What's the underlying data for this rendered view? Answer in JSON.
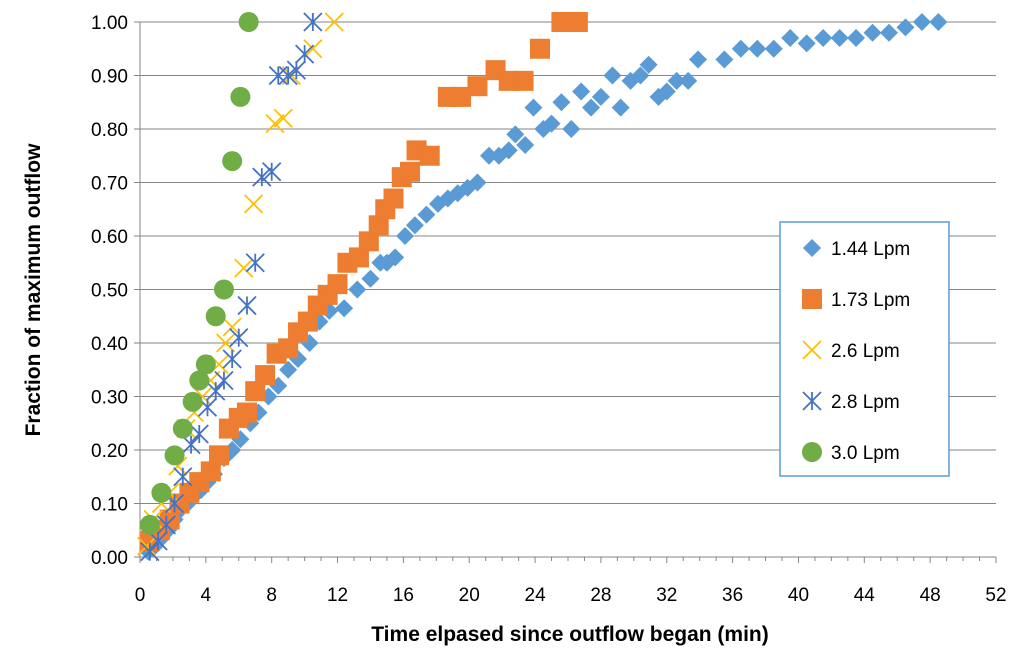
{
  "chart_data": {
    "type": "scatter",
    "title": "",
    "xlabel": "Time elpased since outflow began (min)",
    "ylabel": "Fraction of maximum outflow",
    "xlim": [
      0,
      52
    ],
    "ylim": [
      0,
      1
    ],
    "x_ticks": [
      0,
      4,
      8,
      12,
      16,
      20,
      24,
      28,
      32,
      36,
      40,
      44,
      48,
      52
    ],
    "y_ticks": [
      0,
      0.1,
      0.2,
      0.3,
      0.4,
      0.5,
      0.6,
      0.7,
      0.8,
      0.9,
      1.0
    ],
    "x_tick_labels": [
      "0",
      "4",
      "8",
      "12",
      "16",
      "20",
      "24",
      "28",
      "32",
      "36",
      "40",
      "44",
      "48",
      "52"
    ],
    "y_tick_labels": [
      "0.00",
      "0.10",
      "0.20",
      "0.30",
      "0.40",
      "0.50",
      "0.60",
      "0.70",
      "0.80",
      "0.90",
      "1.00"
    ],
    "grid": "horizontal",
    "legend_position": "right",
    "series": [
      {
        "name": "1.44 Lpm",
        "marker": "diamond",
        "color": "#5B9BD5",
        "points": [
          [
            0.5,
            0.01
          ],
          [
            0.9,
            0.02
          ],
          [
            1.3,
            0.035
          ],
          [
            1.7,
            0.05
          ],
          [
            2.1,
            0.07
          ],
          [
            2.5,
            0.09
          ],
          [
            2.9,
            0.1
          ],
          [
            3.3,
            0.115
          ],
          [
            3.7,
            0.125
          ],
          [
            4.1,
            0.14
          ],
          [
            4.5,
            0.155
          ],
          [
            5.1,
            0.185
          ],
          [
            5.6,
            0.2
          ],
          [
            6.1,
            0.22
          ],
          [
            6.7,
            0.25
          ],
          [
            7.2,
            0.27
          ],
          [
            7.8,
            0.3
          ],
          [
            8.4,
            0.32
          ],
          [
            9.0,
            0.35
          ],
          [
            9.6,
            0.37
          ],
          [
            10.3,
            0.4
          ],
          [
            10.9,
            0.44
          ],
          [
            11.5,
            0.46
          ],
          [
            12.4,
            0.465
          ],
          [
            13.2,
            0.5
          ],
          [
            14.0,
            0.52
          ],
          [
            14.6,
            0.55
          ],
          [
            15.0,
            0.55
          ],
          [
            15.5,
            0.56
          ],
          [
            16.1,
            0.6
          ],
          [
            16.7,
            0.62
          ],
          [
            17.4,
            0.64
          ],
          [
            18.1,
            0.66
          ],
          [
            18.7,
            0.67
          ],
          [
            19.3,
            0.68
          ],
          [
            19.9,
            0.69
          ],
          [
            20.5,
            0.7
          ],
          [
            21.2,
            0.75
          ],
          [
            21.8,
            0.75
          ],
          [
            22.4,
            0.76
          ],
          [
            22.8,
            0.79
          ],
          [
            23.4,
            0.77
          ],
          [
            23.9,
            0.84
          ],
          [
            24.5,
            0.8
          ],
          [
            25.0,
            0.81
          ],
          [
            25.6,
            0.85
          ],
          [
            26.2,
            0.8
          ],
          [
            26.8,
            0.87
          ],
          [
            27.4,
            0.84
          ],
          [
            28.0,
            0.86
          ],
          [
            28.7,
            0.9
          ],
          [
            29.2,
            0.84
          ],
          [
            29.8,
            0.89
          ],
          [
            30.4,
            0.9
          ],
          [
            30.9,
            0.92
          ],
          [
            31.5,
            0.86
          ],
          [
            32.0,
            0.87
          ],
          [
            32.6,
            0.89
          ],
          [
            33.3,
            0.89
          ],
          [
            33.9,
            0.93
          ],
          [
            35.5,
            0.93
          ],
          [
            36.5,
            0.95
          ],
          [
            37.5,
            0.95
          ],
          [
            38.5,
            0.95
          ],
          [
            39.5,
            0.97
          ],
          [
            40.5,
            0.96
          ],
          [
            41.5,
            0.97
          ],
          [
            42.5,
            0.97
          ],
          [
            43.5,
            0.97
          ],
          [
            44.5,
            0.98
          ],
          [
            45.5,
            0.98
          ],
          [
            46.5,
            0.99
          ],
          [
            47.5,
            1.0
          ],
          [
            48.5,
            1.0
          ]
        ]
      },
      {
        "name": "1.73 Lpm",
        "marker": "square",
        "color": "#ED7D31",
        "points": [
          [
            0.6,
            0.03
          ],
          [
            1.2,
            0.05
          ],
          [
            1.8,
            0.07
          ],
          [
            2.4,
            0.1
          ],
          [
            3.0,
            0.12
          ],
          [
            3.6,
            0.14
          ],
          [
            4.3,
            0.16
          ],
          [
            4.8,
            0.19
          ],
          [
            5.4,
            0.24
          ],
          [
            6.0,
            0.26
          ],
          [
            6.5,
            0.27
          ],
          [
            7.0,
            0.31
          ],
          [
            7.6,
            0.34
          ],
          [
            8.3,
            0.38
          ],
          [
            9.0,
            0.39
          ],
          [
            9.6,
            0.42
          ],
          [
            10.2,
            0.44
          ],
          [
            10.8,
            0.47
          ],
          [
            11.4,
            0.49
          ],
          [
            12.0,
            0.51
          ],
          [
            12.6,
            0.55
          ],
          [
            13.3,
            0.56
          ],
          [
            13.9,
            0.59
          ],
          [
            14.5,
            0.62
          ],
          [
            14.9,
            0.65
          ],
          [
            15.4,
            0.67
          ],
          [
            15.9,
            0.71
          ],
          [
            16.4,
            0.72
          ],
          [
            16.8,
            0.76
          ],
          [
            17.6,
            0.75
          ],
          [
            18.7,
            0.86
          ],
          [
            19.5,
            0.86
          ],
          [
            20.5,
            0.88
          ],
          [
            21.6,
            0.91
          ],
          [
            22.4,
            0.89
          ],
          [
            23.3,
            0.89
          ],
          [
            24.3,
            0.95
          ],
          [
            25.6,
            1.0
          ],
          [
            26.6,
            1.0
          ]
        ]
      },
      {
        "name": "2.6 Lpm",
        "marker": "x",
        "color": "#FFC000",
        "points": [
          [
            0.4,
            0.02
          ],
          [
            0.8,
            0.07
          ],
          [
            1.3,
            0.1
          ],
          [
            1.8,
            0.12
          ],
          [
            2.3,
            0.17
          ],
          [
            2.8,
            0.24
          ],
          [
            3.3,
            0.27
          ],
          [
            3.8,
            0.3
          ],
          [
            4.3,
            0.33
          ],
          [
            4.8,
            0.36
          ],
          [
            5.2,
            0.4
          ],
          [
            5.6,
            0.43
          ],
          [
            6.3,
            0.54
          ],
          [
            6.9,
            0.66
          ],
          [
            8.2,
            0.81
          ],
          [
            8.7,
            0.82
          ],
          [
            9.2,
            0.9
          ],
          [
            10.5,
            0.95
          ],
          [
            11.8,
            1.0
          ]
        ]
      },
      {
        "name": "2.8 Lpm",
        "marker": "star",
        "color": "#4472C4",
        "points": [
          [
            0.6,
            0.01
          ],
          [
            1.1,
            0.03
          ],
          [
            1.6,
            0.06
          ],
          [
            2.1,
            0.1
          ],
          [
            2.6,
            0.15
          ],
          [
            3.1,
            0.21
          ],
          [
            3.6,
            0.23
          ],
          [
            4.1,
            0.28
          ],
          [
            4.6,
            0.31
          ],
          [
            5.1,
            0.33
          ],
          [
            5.6,
            0.37
          ],
          [
            6.0,
            0.41
          ],
          [
            6.5,
            0.47
          ],
          [
            7.0,
            0.55
          ],
          [
            7.4,
            0.71
          ],
          [
            8.0,
            0.72
          ],
          [
            8.4,
            0.9
          ],
          [
            9.0,
            0.9
          ],
          [
            9.5,
            0.91
          ],
          [
            10.0,
            0.94
          ],
          [
            10.5,
            1.0
          ]
        ]
      },
      {
        "name": "3.0 Lpm",
        "marker": "circle",
        "color": "#70AD47",
        "points": [
          [
            0.6,
            0.06
          ],
          [
            1.3,
            0.12
          ],
          [
            2.1,
            0.19
          ],
          [
            2.6,
            0.24
          ],
          [
            3.2,
            0.29
          ],
          [
            3.6,
            0.33
          ],
          [
            4.0,
            0.36
          ],
          [
            4.6,
            0.45
          ],
          [
            5.1,
            0.5
          ],
          [
            5.6,
            0.74
          ],
          [
            6.1,
            0.86
          ],
          [
            6.6,
            1.0
          ]
        ]
      }
    ]
  }
}
